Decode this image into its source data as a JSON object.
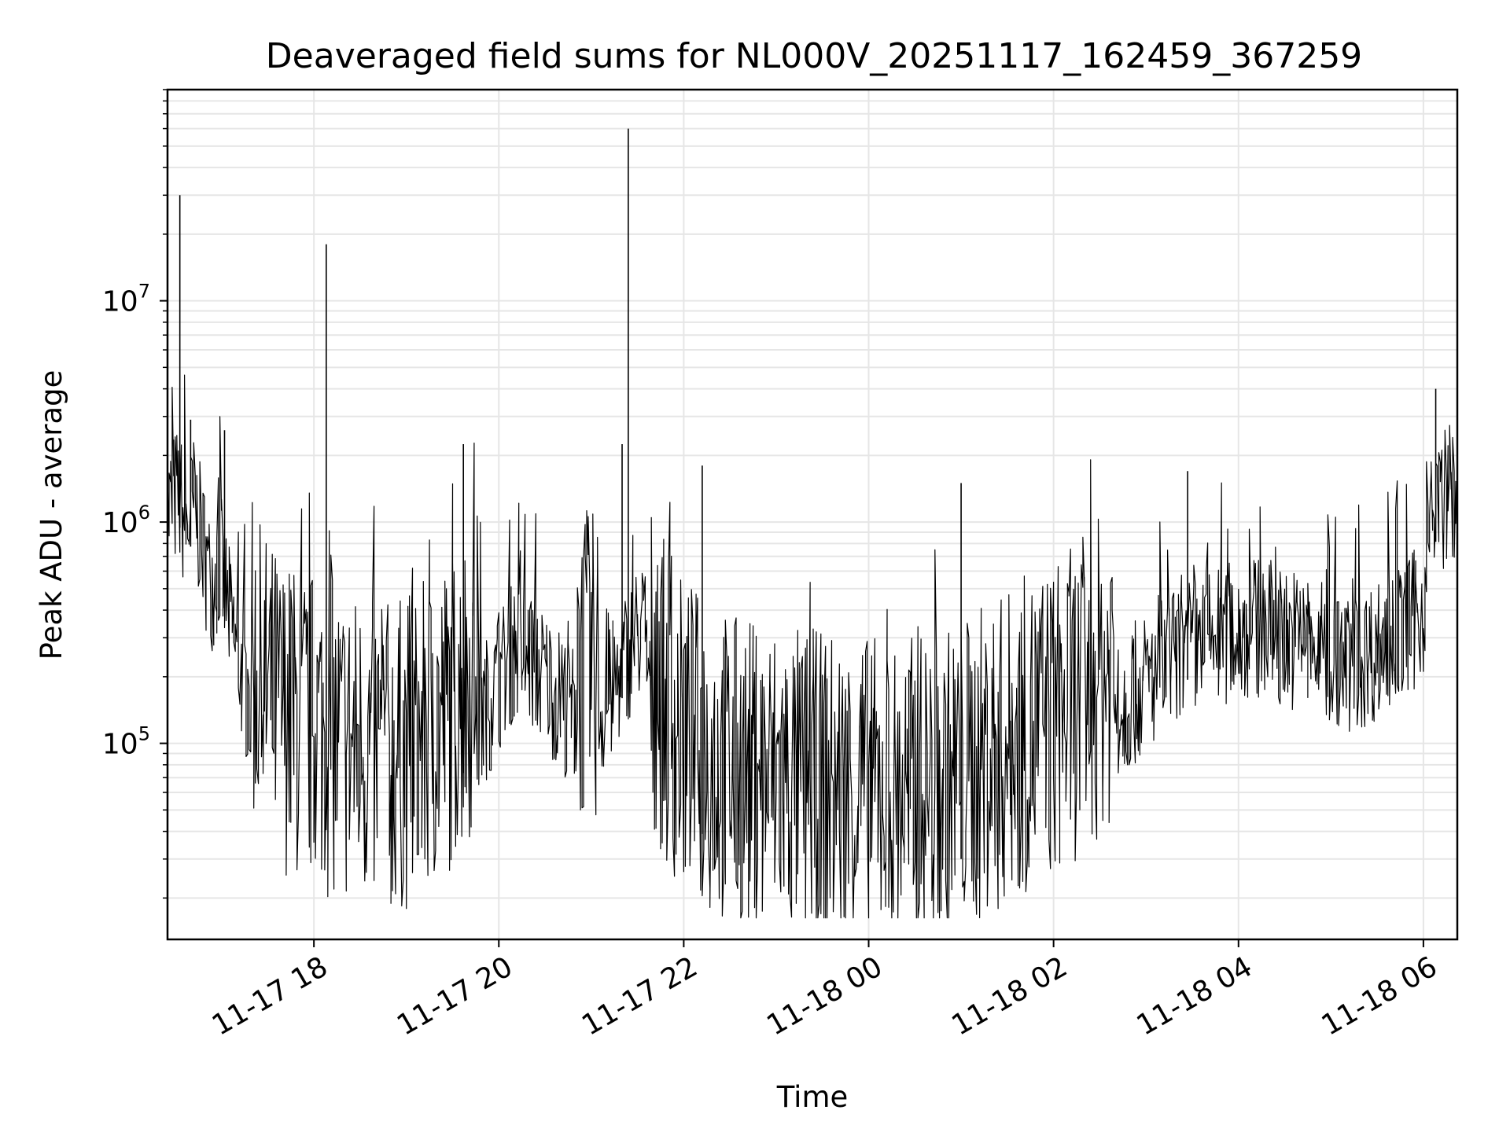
{
  "chart_data": {
    "type": "line",
    "title": "Deaveraged field sums for NL000V_20251117_162459_367259",
    "xlabel": "Time",
    "ylabel": "Peak ADU - average",
    "yscale": "log",
    "ylim": [
      13000,
      90000000
    ],
    "xlim": [
      "2025-11-17 16:25",
      "2025-11-18 06:22"
    ],
    "x_ticks": [
      {
        "date": "2025-11-17 18:00",
        "label": "11-17 18"
      },
      {
        "date": "2025-11-17 20:00",
        "label": "11-17 20"
      },
      {
        "date": "2025-11-17 22:00",
        "label": "11-17 22"
      },
      {
        "date": "2025-11-18 00:00",
        "label": "11-18 00"
      },
      {
        "date": "2025-11-18 02:00",
        "label": "11-18 02"
      },
      {
        "date": "2025-11-18 04:00",
        "label": "11-18 04"
      },
      {
        "date": "2025-11-18 06:00",
        "label": "11-18 06"
      }
    ],
    "y_ticks": [
      {
        "value": 100000,
        "base": "10",
        "exp": "5"
      },
      {
        "value": 1000000,
        "base": "10",
        "exp": "6"
      },
      {
        "value": 10000000,
        "base": "10",
        "exp": "7"
      }
    ],
    "grid": true,
    "line_color": "#000000",
    "series": [
      {
        "x": [
          "2025-11-17 16:25",
          "2025-11-17 16:32",
          "2025-11-17 16:38",
          "2025-11-17 16:43",
          "2025-11-17 16:48",
          "2025-11-17 16:53",
          "2025-11-17 17:00",
          "2025-11-17 17:05",
          "2025-11-17 17:10",
          "2025-11-17 17:15",
          "2025-11-17 17:20",
          "2025-11-17 17:25",
          "2025-11-17 17:30",
          "2025-11-17 17:38",
          "2025-11-17 17:45",
          "2025-11-17 17:52",
          "2025-11-17 18:00",
          "2025-11-17 18:08",
          "2025-11-17 18:10",
          "2025-11-17 18:20",
          "2025-11-17 18:30",
          "2025-11-17 18:40",
          "2025-11-17 18:50",
          "2025-11-17 19:00",
          "2025-11-17 19:10",
          "2025-11-17 19:20",
          "2025-11-17 19:30",
          "2025-11-17 19:40",
          "2025-11-17 19:50",
          "2025-11-17 20:00",
          "2025-11-17 20:10",
          "2025-11-17 20:20",
          "2025-11-17 20:30",
          "2025-11-17 20:40",
          "2025-11-17 20:50",
          "2025-11-17 21:00",
          "2025-11-17 21:10",
          "2025-11-17 21:20",
          "2025-11-17 21:25",
          "2025-11-17 21:30",
          "2025-11-17 21:35",
          "2025-11-17 21:40",
          "2025-11-17 21:50",
          "2025-11-17 22:00",
          "2025-11-17 22:10",
          "2025-11-17 22:20",
          "2025-11-17 22:30",
          "2025-11-17 22:40",
          "2025-11-17 22:50",
          "2025-11-17 23:00",
          "2025-11-17 23:10",
          "2025-11-17 23:20",
          "2025-11-17 23:30",
          "2025-11-17 23:40",
          "2025-11-17 23:50",
          "2025-11-18 00:00",
          "2025-11-18 00:10",
          "2025-11-18 00:20",
          "2025-11-18 00:30",
          "2025-11-18 00:40",
          "2025-11-18 00:50",
          "2025-11-18 01:00",
          "2025-11-18 01:10",
          "2025-11-18 01:20",
          "2025-11-18 01:30",
          "2025-11-18 01:40",
          "2025-11-18 01:50",
          "2025-11-18 02:00",
          "2025-11-18 02:10",
          "2025-11-18 02:20",
          "2025-11-18 02:30",
          "2025-11-18 02:40",
          "2025-11-18 02:50",
          "2025-11-18 03:00",
          "2025-11-18 03:10",
          "2025-11-18 03:20",
          "2025-11-18 03:30",
          "2025-11-18 03:40",
          "2025-11-18 03:50",
          "2025-11-18 04:00",
          "2025-11-18 04:10",
          "2025-11-18 04:20",
          "2025-11-18 04:30",
          "2025-11-18 04:40",
          "2025-11-18 04:50",
          "2025-11-18 05:00",
          "2025-11-18 05:10",
          "2025-11-18 05:20",
          "2025-11-18 05:30",
          "2025-11-18 05:40",
          "2025-11-18 05:50",
          "2025-11-18 06:00",
          "2025-11-18 06:05",
          "2025-11-18 06:10",
          "2025-11-18 06:15",
          "2025-11-18 06:22"
        ],
        "y": [
          800000,
          1000000,
          700000,
          900000,
          600000,
          400000,
          500000,
          300000,
          200000,
          150000,
          100000,
          80000,
          70000,
          60000,
          55000,
          50000,
          50000,
          48000,
          45000,
          42000,
          40000,
          38000,
          36000,
          38000,
          42000,
          50000,
          60000,
          80000,
          100000,
          140000,
          200000,
          180000,
          150000,
          120000,
          100000,
          90000,
          110000,
          160000,
          200000,
          230000,
          250000,
          90000,
          60000,
          45000,
          40000,
          35000,
          32000,
          30000,
          29000,
          29000,
          28000,
          27000,
          26000,
          26000,
          25000,
          25000,
          24000,
          24000,
          25000,
          26000,
          27000,
          30000,
          33000,
          36000,
          40000,
          45000,
          50000,
          55000,
          60000,
          70000,
          85000,
          100000,
          120000,
          140000,
          160000,
          180000,
          200000,
          220000,
          230000,
          240000,
          250000,
          240000,
          230000,
          220000,
          200000,
          180000,
          170000,
          180000,
          200000,
          220000,
          250000,
          300000,
          700000,
          900000,
          1000000,
          1000000
        ]
      }
    ],
    "spikes": [
      {
        "x": "2025-11-17 16:33",
        "y": 30000000
      },
      {
        "x": "2025-11-17 16:40",
        "y": 2900000
      },
      {
        "x": "2025-11-17 17:02",
        "y": 2600000
      },
      {
        "x": "2025-11-17 18:08",
        "y": 18000000
      },
      {
        "x": "2025-11-17 19:37",
        "y": 2250000
      },
      {
        "x": "2025-11-17 21:20",
        "y": 2250000
      },
      {
        "x": "2025-11-17 21:24",
        "y": 60000000
      },
      {
        "x": "2025-11-17 22:12",
        "y": 1800000
      },
      {
        "x": "2025-11-18 01:00",
        "y": 1500000
      },
      {
        "x": "2025-11-18 03:27",
        "y": 1700000
      },
      {
        "x": "2025-11-18 06:08",
        "y": 4000000
      }
    ]
  }
}
